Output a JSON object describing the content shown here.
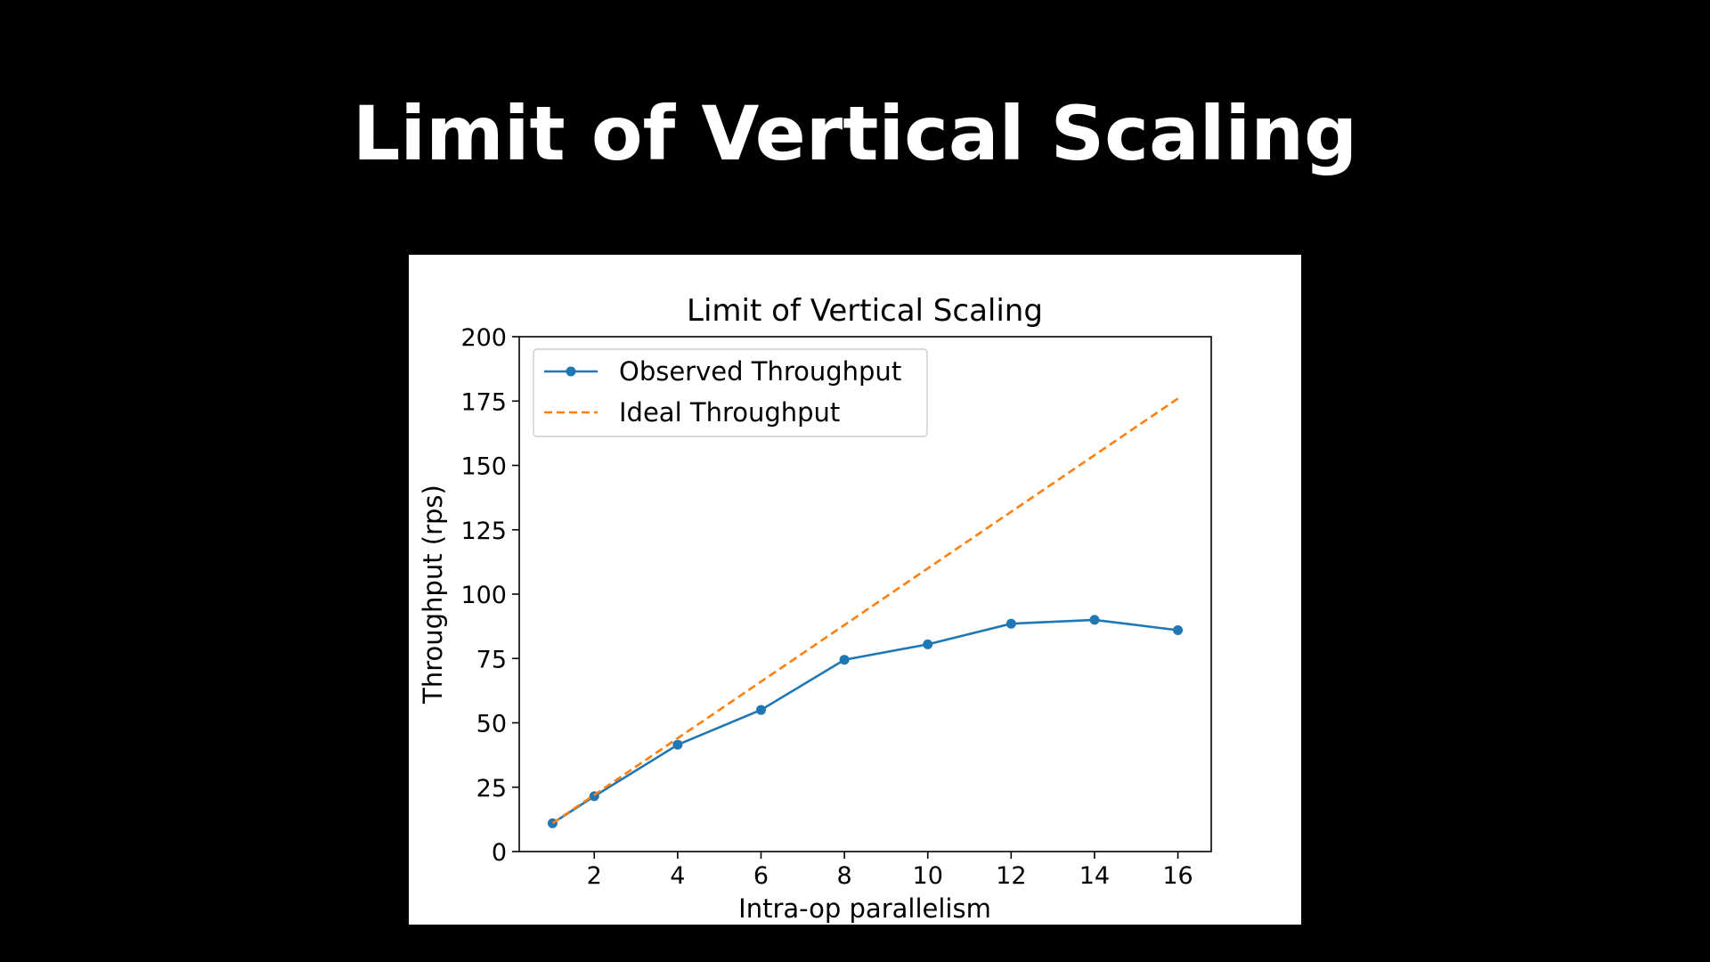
{
  "slide": {
    "title": "Limit of Vertical Scaling"
  },
  "chart_data": {
    "type": "line",
    "title": "Limit of Vertical Scaling",
    "xlabel": "Intra-op parallelism",
    "ylabel": "Throughput (rps)",
    "xlim": [
      0.2,
      16.8
    ],
    "ylim": [
      0,
      200
    ],
    "xticks": [
      2,
      4,
      6,
      8,
      10,
      12,
      14,
      16
    ],
    "yticks": [
      0,
      25,
      50,
      75,
      100,
      125,
      150,
      175,
      200
    ],
    "grid": false,
    "legend_position": "top-left",
    "series": [
      {
        "name": "Observed Throughput",
        "style": "solid",
        "marker": "circle",
        "color": "#1f77b4",
        "x": [
          1,
          2,
          4,
          6,
          8,
          10,
          12,
          14,
          16
        ],
        "y": [
          11,
          21.5,
          41.5,
          55,
          74.5,
          80.5,
          88.5,
          90,
          86
        ]
      },
      {
        "name": "Ideal Throughput",
        "style": "dashed",
        "marker": "none",
        "color": "#ff7f0e",
        "x": [
          1,
          16
        ],
        "y": [
          11,
          176
        ]
      }
    ]
  }
}
